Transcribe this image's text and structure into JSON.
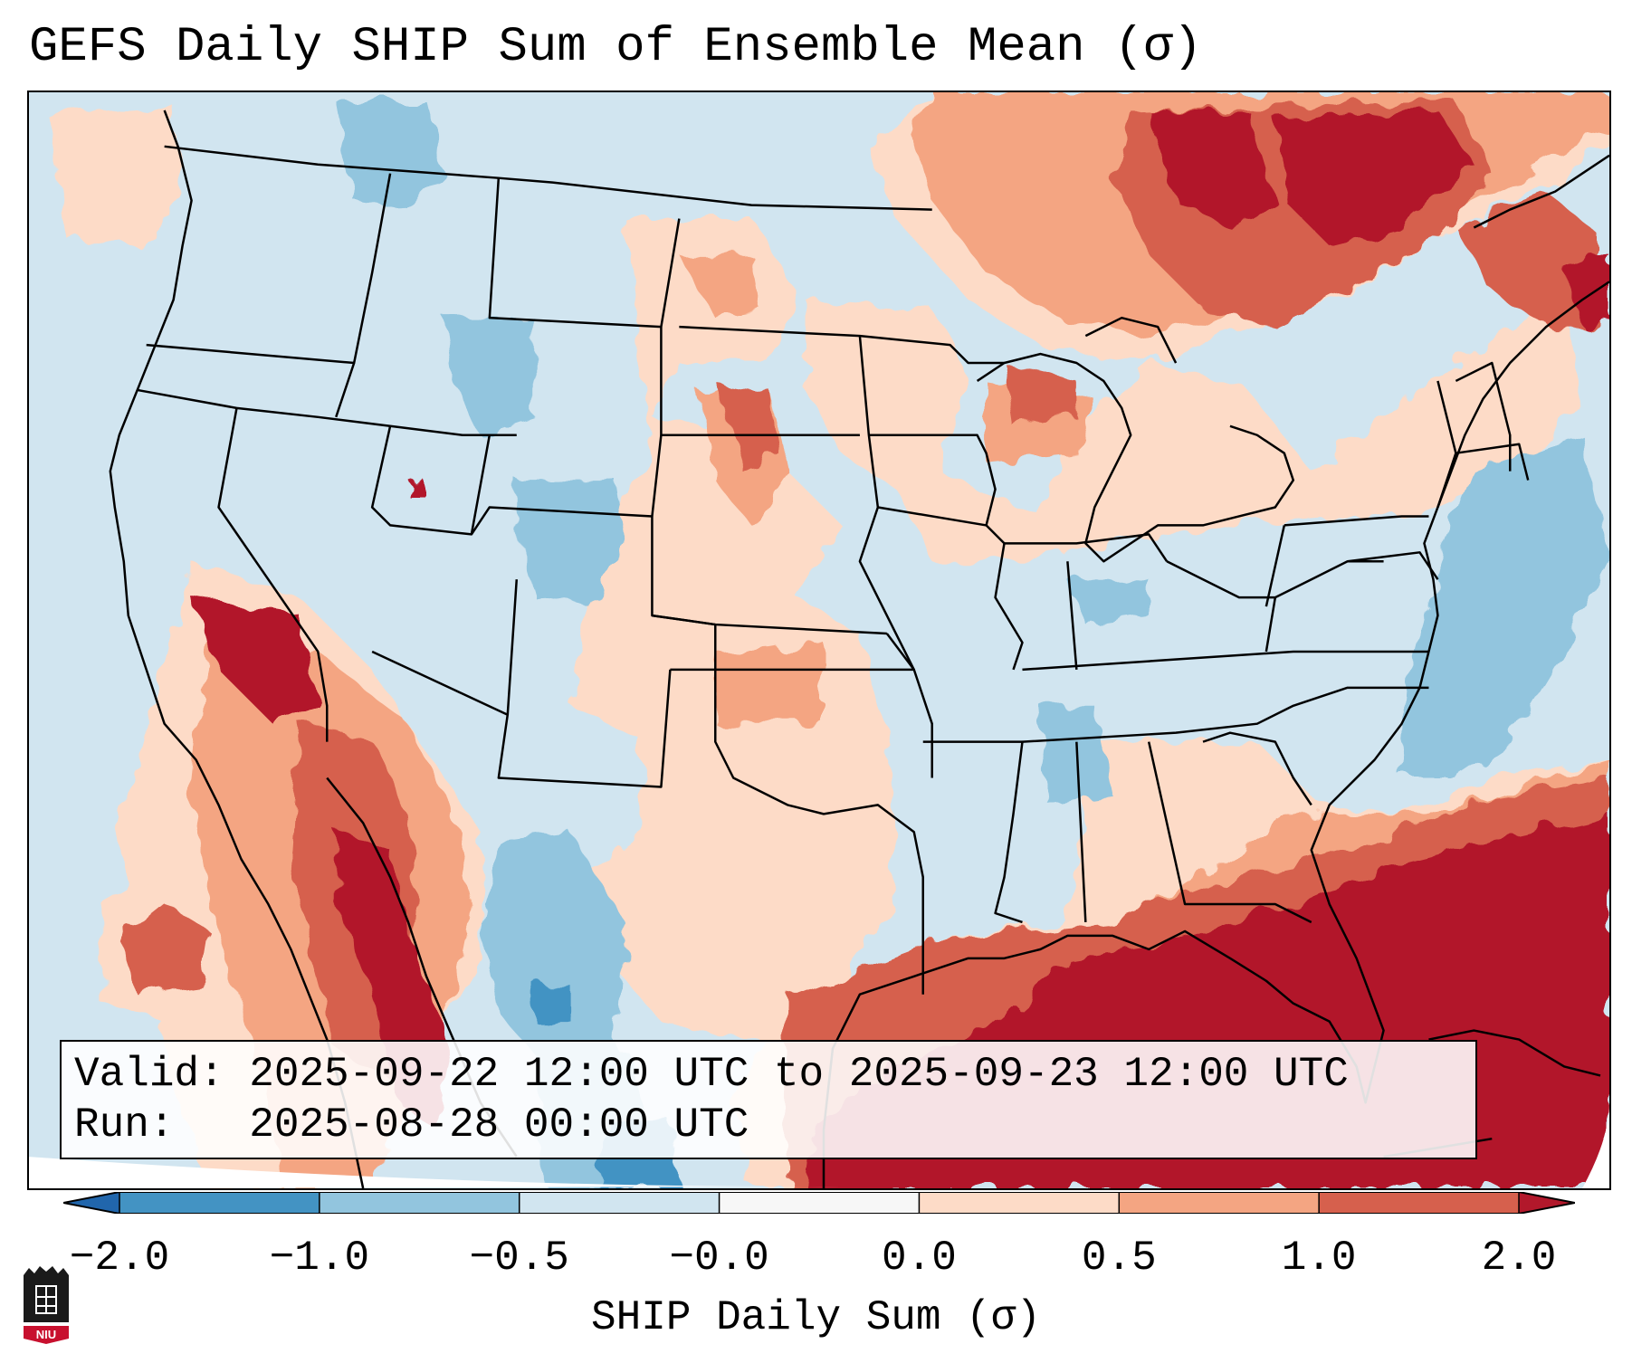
{
  "header": {
    "title": "GEFS Daily SHIP Sum of Ensemble Mean (σ)"
  },
  "info": {
    "valid_line": "Valid: 2025-09-22 12:00 UTC to 2025-09-23 12:00 UTC",
    "run_line": "Run:   2025-08-28 00:00 UTC"
  },
  "colorbar": {
    "label": "SHIP Daily Sum (σ)",
    "ticks": [
      "−2.0",
      "−1.0",
      "−0.5",
      "−0.0",
      "0.0",
      "0.5",
      "1.0",
      "2.0"
    ],
    "bin_colors": [
      "#2166ac",
      "#4393c3",
      "#92c5de",
      "#d1e5f0",
      "#f7f7f7",
      "#fddbc7",
      "#f4a582",
      "#d6604d",
      "#b2182b"
    ],
    "extend": "both"
  },
  "logo": {
    "text": "NIU",
    "color": "#c8102e"
  }
}
